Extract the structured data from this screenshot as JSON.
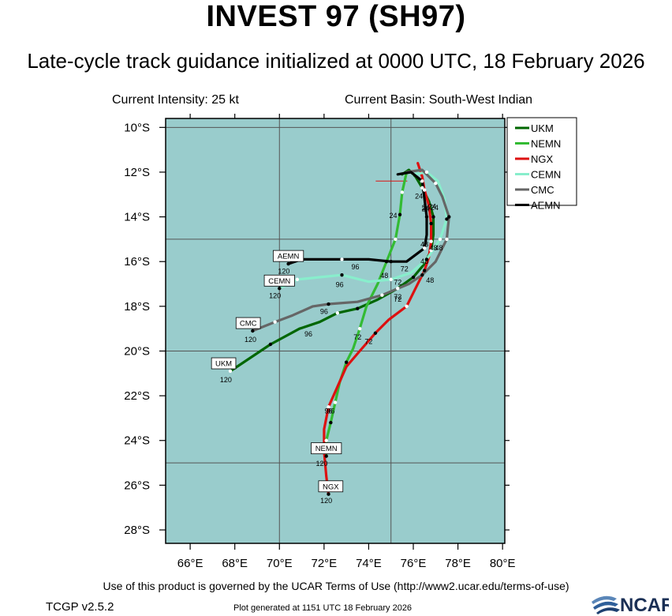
{
  "header": {
    "title": "INVEST 97 (SH97)",
    "subtitle": "Late-cycle track guidance initialized at 0000 UTC, 18 February 2026",
    "current_intensity": "Current Intensity: 25 kt",
    "current_basin": "Current Basin: South-West Indian"
  },
  "footer": {
    "terms": "Use of this product is governed by the UCAR Terms of Use (http://www2.ucar.edu/terms-of-use)",
    "version": "TCGP v2.5.2",
    "generated": "Plot generated at 1151 UTC   18 February 2026",
    "logo_text": "NCAR"
  },
  "chart_data": {
    "type": "line",
    "xlabel": "",
    "ylabel": "",
    "xlim": [
      64.9,
      80.1
    ],
    "ylim": [
      -28.6,
      -9.6
    ],
    "x_ticks": [
      66,
      68,
      70,
      72,
      74,
      76,
      78,
      80
    ],
    "x_tick_labels": [
      "66°E",
      "68°E",
      "70°E",
      "72°E",
      "74°E",
      "76°E",
      "78°E",
      "80°E"
    ],
    "y_ticks": [
      -10,
      -12,
      -14,
      -16,
      -18,
      -20,
      -22,
      -24,
      -26,
      -28
    ],
    "y_tick_labels": [
      "10°S",
      "12°S",
      "14°S",
      "16°S",
      "18°S",
      "20°S",
      "22°S",
      "24°S",
      "26°S",
      "28°S"
    ],
    "grid_lons": [
      70,
      75
    ],
    "grid_lats": [
      -10,
      -15,
      -20,
      -25
    ],
    "grid": true,
    "legend_position": "top-right",
    "background_color": "#99cccc",
    "current_position": {
      "lon": 75.8,
      "lat": -12.1
    },
    "series": [
      {
        "name": "UKM",
        "color": "#006600",
        "points": [
          [
            75.5,
            -12.1
          ],
          [
            75.8,
            -11.9
          ],
          [
            76.1,
            -12.2
          ],
          [
            76.4,
            -12.7
          ],
          [
            76.7,
            -13.3
          ],
          [
            76.9,
            -14.0
          ],
          [
            76.9,
            -14.8
          ],
          [
            76.8,
            -15.5
          ],
          [
            76.5,
            -16.1
          ],
          [
            76.0,
            -16.7
          ],
          [
            75.3,
            -17.2
          ],
          [
            74.4,
            -17.7
          ],
          [
            73.5,
            -18.1
          ],
          [
            72.6,
            -18.3
          ],
          [
            71.8,
            -18.7
          ],
          [
            70.9,
            -19.0
          ],
          [
            69.6,
            -19.7
          ],
          [
            68.7,
            -20.3
          ],
          [
            67.8,
            -20.9
          ]
        ],
        "markers": [
          [
            76.4,
            -12.7
          ],
          [
            76.9,
            -14.0
          ],
          [
            76.8,
            -15.5
          ],
          [
            76.0,
            -16.7
          ],
          [
            75.3,
            -17.2
          ],
          [
            73.5,
            -18.1
          ],
          [
            72.6,
            -18.3
          ],
          [
            69.6,
            -19.7
          ],
          [
            67.8,
            -20.9
          ]
        ],
        "hour_labels": [
          {
            "text": "24",
            "lon": 76.25,
            "lat": -13.05
          },
          {
            "text": "48",
            "lon": 76.9,
            "lat": -15.35
          },
          {
            "text": "72",
            "lon": 75.3,
            "lat": -17.55
          },
          {
            "text": "96",
            "lon": 71.3,
            "lat": -19.2
          },
          {
            "text": "120",
            "lon": 67.6,
            "lat": -21.25
          }
        ],
        "name_box": {
          "lon": 67.5,
          "lat": -20.55
        }
      },
      {
        "name": "NEMN",
        "color": "#33bb33",
        "points": [
          [
            75.7,
            -12.0
          ],
          [
            75.5,
            -12.9
          ],
          [
            75.4,
            -13.9
          ],
          [
            75.2,
            -15.0
          ],
          [
            74.8,
            -16.0
          ],
          [
            74.4,
            -17.0
          ],
          [
            73.9,
            -18.0
          ],
          [
            73.6,
            -19.0
          ],
          [
            73.3,
            -19.9
          ],
          [
            73.0,
            -20.5
          ],
          [
            72.7,
            -21.4
          ],
          [
            72.5,
            -22.3
          ],
          [
            72.3,
            -23.2
          ],
          [
            72.1,
            -24.0
          ],
          [
            72.1,
            -24.7
          ]
        ],
        "markers": [
          [
            75.5,
            -12.9
          ],
          [
            75.4,
            -13.9
          ],
          [
            75.2,
            -15.0
          ],
          [
            74.8,
            -16.0
          ],
          [
            73.6,
            -19.0
          ],
          [
            73.0,
            -20.5
          ],
          [
            72.5,
            -22.3
          ],
          [
            72.3,
            -23.2
          ],
          [
            72.1,
            -24.0
          ],
          [
            72.1,
            -24.7
          ]
        ],
        "hour_labels": [
          {
            "text": "24",
            "lon": 75.1,
            "lat": -13.9
          },
          {
            "text": "48",
            "lon": 74.7,
            "lat": -16.6
          },
          {
            "text": "72",
            "lon": 73.5,
            "lat": -19.35
          },
          {
            "text": "96",
            "lon": 72.2,
            "lat": -22.65
          },
          {
            "text": "120",
            "lon": 71.9,
            "lat": -25.0
          }
        ],
        "name_box": {
          "lon": 72.1,
          "lat": -24.35
        }
      },
      {
        "name": "NGX",
        "color": "#dd1111",
        "points": [
          [
            76.2,
            -11.6
          ],
          [
            76.4,
            -12.2
          ],
          [
            76.5,
            -12.8
          ],
          [
            76.7,
            -13.5
          ],
          [
            76.8,
            -14.3
          ],
          [
            76.8,
            -15.1
          ],
          [
            76.7,
            -15.8
          ],
          [
            76.5,
            -16.4
          ],
          [
            76.1,
            -17.2
          ],
          [
            75.7,
            -18.0
          ],
          [
            74.9,
            -18.6
          ],
          [
            74.3,
            -19.2
          ],
          [
            73.6,
            -20.0
          ],
          [
            73.0,
            -20.7
          ],
          [
            72.6,
            -21.6
          ],
          [
            72.2,
            -22.5
          ],
          [
            72.0,
            -23.5
          ],
          [
            72.0,
            -24.5
          ],
          [
            72.1,
            -25.6
          ],
          [
            72.2,
            -26.4
          ]
        ],
        "markers": [
          [
            76.5,
            -12.8
          ],
          [
            76.8,
            -14.3
          ],
          [
            76.8,
            -15.1
          ],
          [
            76.5,
            -16.4
          ],
          [
            75.7,
            -18.0
          ],
          [
            74.3,
            -19.2
          ],
          [
            72.2,
            -22.5
          ],
          [
            72.2,
            -26.4
          ]
        ],
        "hour_labels": [
          {
            "text": "24",
            "lon": 76.55,
            "lat": -13.6
          },
          {
            "text": "48",
            "lon": 76.75,
            "lat": -16.8
          },
          {
            "text": "72",
            "lon": 74.0,
            "lat": -19.55
          },
          {
            "text": "96",
            "lon": 72.3,
            "lat": -22.65
          },
          {
            "text": "120",
            "lon": 72.1,
            "lat": -26.65
          }
        ],
        "name_box": {
          "lon": 72.3,
          "lat": -26.05
        }
      },
      {
        "name": "CEMN",
        "color": "#88eecc",
        "points": [
          [
            76.0,
            -12.1
          ],
          [
            76.6,
            -12.0
          ],
          [
            77.1,
            -12.4
          ],
          [
            77.4,
            -13.2
          ],
          [
            77.5,
            -14.1
          ],
          [
            77.2,
            -15.0
          ],
          [
            76.6,
            -15.9
          ],
          [
            75.9,
            -16.5
          ],
          [
            75.0,
            -16.8
          ],
          [
            74.0,
            -16.9
          ],
          [
            72.8,
            -16.6
          ],
          [
            71.8,
            -16.7
          ],
          [
            70.8,
            -16.8
          ],
          [
            70.0,
            -17.2
          ]
        ],
        "markers": [
          [
            76.6,
            -12.0
          ],
          [
            77.5,
            -14.1
          ],
          [
            77.2,
            -15.0
          ],
          [
            76.6,
            -15.9
          ],
          [
            75.0,
            -16.8
          ],
          [
            72.8,
            -16.6
          ],
          [
            70.8,
            -16.8
          ],
          [
            70.0,
            -17.2
          ]
        ],
        "hour_labels": [
          {
            "text": "24",
            "lon": 76.85,
            "lat": -13.5
          },
          {
            "text": "48",
            "lon": 76.5,
            "lat": -15.95
          },
          {
            "text": "72",
            "lon": 75.3,
            "lat": -16.9
          },
          {
            "text": "96",
            "lon": 72.7,
            "lat": -17.0
          },
          {
            "text": "120",
            "lon": 69.8,
            "lat": -17.5
          }
        ],
        "name_box": {
          "lon": 70.0,
          "lat": -16.85
        }
      },
      {
        "name": "CMC",
        "color": "#666666",
        "points": [
          [
            75.7,
            -12.0
          ],
          [
            76.4,
            -11.9
          ],
          [
            77.0,
            -12.5
          ],
          [
            77.3,
            -13.1
          ],
          [
            77.6,
            -14.0
          ],
          [
            77.5,
            -15.0
          ],
          [
            77.0,
            -16.0
          ],
          [
            76.4,
            -16.6
          ],
          [
            75.8,
            -17.0
          ],
          [
            74.6,
            -17.5
          ],
          [
            73.5,
            -17.8
          ],
          [
            72.2,
            -17.9
          ],
          [
            71.5,
            -18.0
          ],
          [
            70.6,
            -18.4
          ],
          [
            69.8,
            -18.7
          ],
          [
            68.8,
            -19.1
          ]
        ],
        "markers": [
          [
            77.0,
            -12.5
          ],
          [
            77.6,
            -14.0
          ],
          [
            77.5,
            -15.0
          ],
          [
            76.4,
            -16.6
          ],
          [
            74.6,
            -17.5
          ],
          [
            72.2,
            -17.9
          ],
          [
            69.8,
            -18.7
          ],
          [
            68.8,
            -19.1
          ]
        ],
        "hour_labels": [
          {
            "text": "24",
            "lon": 76.95,
            "lat": -13.55
          },
          {
            "text": "48",
            "lon": 77.15,
            "lat": -15.35
          },
          {
            "text": "72",
            "lon": 75.3,
            "lat": -17.65
          },
          {
            "text": "96",
            "lon": 72.0,
            "lat": -18.2
          },
          {
            "text": "120",
            "lon": 68.7,
            "lat": -19.45
          }
        ],
        "name_box": {
          "lon": 68.6,
          "lat": -18.75
        }
      },
      {
        "name": "AEMN",
        "color": "#000000",
        "points": [
          [
            75.3,
            -12.1
          ],
          [
            75.9,
            -12.0
          ],
          [
            76.4,
            -12.4
          ],
          [
            76.5,
            -13.2
          ],
          [
            76.6,
            -14.0
          ],
          [
            76.6,
            -14.8
          ],
          [
            76.5,
            -15.4
          ],
          [
            75.7,
            -16.0
          ],
          [
            75.0,
            -16.0
          ],
          [
            74.0,
            -15.9
          ],
          [
            72.8,
            -15.9
          ],
          [
            71.8,
            -15.9
          ],
          [
            71.0,
            -15.9
          ],
          [
            70.4,
            -16.1
          ]
        ],
        "markers": [
          [
            76.4,
            -12.4
          ],
          [
            76.6,
            -14.0
          ],
          [
            76.5,
            -15.4
          ],
          [
            75.0,
            -16.0
          ],
          [
            72.8,
            -15.9
          ],
          [
            70.4,
            -16.1
          ]
        ],
        "hour_labels": [
          {
            "text": "24",
            "lon": 76.55,
            "lat": -13.55
          },
          {
            "text": "48",
            "lon": 76.5,
            "lat": -15.2
          },
          {
            "text": "72",
            "lon": 75.6,
            "lat": -16.3
          },
          {
            "text": "96",
            "lon": 73.4,
            "lat": -16.2
          },
          {
            "text": "120",
            "lon": 70.2,
            "lat": -16.4
          }
        ],
        "name_box": {
          "lon": 70.4,
          "lat": -15.75
        }
      }
    ]
  }
}
